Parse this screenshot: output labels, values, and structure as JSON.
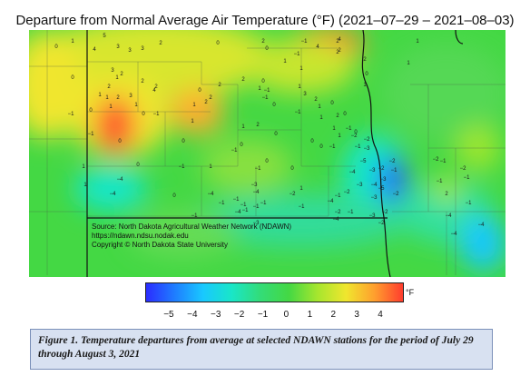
{
  "title": "Departure from Normal Average Air Temperature (°F) (2021–07–29 – 2021–08–03)",
  "source_lines": [
    "Source: North Dakota Agricultural Weather Network (NDAWN)",
    "https://ndawn.ndsu.nodak.edu",
    "Copyright © North Dakota State University"
  ],
  "colorbar": {
    "unit": "°F",
    "ticks": [
      "−5",
      "−4",
      "−3",
      "−2",
      "−1",
      "0",
      "1",
      "2",
      "3",
      "4"
    ],
    "range": [
      -6,
      5
    ],
    "colors": [
      "#2b2bff",
      "#1f7cff",
      "#19c8ff",
      "#19e6c8",
      "#33dc78",
      "#44d844",
      "#a6e62e",
      "#f0e62e",
      "#ff9e2e",
      "#ff3b2e"
    ]
  },
  "caption": "Figure 1. Temperature departures from average at selected NDAWN stations for the period of July 29 through August 3, 2021",
  "stations": [
    {
      "v": "0"
    },
    {
      "v": "1"
    },
    {
      "v": "5"
    },
    {
      "v": "3"
    },
    {
      "v": "4"
    },
    {
      "v": "3"
    },
    {
      "v": "3"
    },
    {
      "v": "2"
    },
    {
      "v": "0"
    },
    {
      "v": "2"
    },
    {
      "v": "0"
    },
    {
      "v": "−1"
    },
    {
      "v": "4"
    },
    {
      "v": "2"
    },
    {
      "v": "2"
    },
    {
      "v": "−1"
    },
    {
      "v": "1"
    },
    {
      "v": "1"
    },
    {
      "v": "3"
    },
    {
      "v": "2"
    },
    {
      "v": "2"
    },
    {
      "v": "2"
    },
    {
      "v": "4"
    },
    {
      "v": "3"
    },
    {
      "v": "1"
    },
    {
      "v": "2"
    },
    {
      "v": "0"
    },
    {
      "v": "1"
    },
    {
      "v": "1"
    },
    {
      "v": "2"
    },
    {
      "v": "−1"
    },
    {
      "v": "0"
    },
    {
      "v": "1"
    },
    {
      "v": "2"
    },
    {
      "v": "1"
    },
    {
      "v": "0"
    },
    {
      "v": "−1"
    },
    {
      "v": "1"
    },
    {
      "v": "0"
    },
    {
      "v": "2"
    },
    {
      "v": "2"
    },
    {
      "v": "1"
    },
    {
      "v": "−1"
    },
    {
      "v": "1"
    },
    {
      "v": "3"
    },
    {
      "v": "2"
    },
    {
      "v": "1"
    },
    {
      "v": "1"
    },
    {
      "v": "2"
    },
    {
      "v": "4"
    },
    {
      "v": "2"
    },
    {
      "v": "2"
    },
    {
      "v": "1"
    },
    {
      "v": "0"
    },
    {
      "v": "1"
    },
    {
      "v": "1"
    },
    {
      "v": "2"
    },
    {
      "v": "0"
    },
    {
      "v": "1"
    },
    {
      "v": "0"
    },
    {
      "v": "−1"
    },
    {
      "v": "2"
    },
    {
      "v": "−1"
    },
    {
      "v": "1"
    },
    {
      "v": "0"
    },
    {
      "v": "0"
    },
    {
      "v": "−1"
    },
    {
      "v": "0"
    },
    {
      "v": "1"
    },
    {
      "v": "0"
    },
    {
      "v": "0"
    },
    {
      "v": "0"
    },
    {
      "v": "−1"
    },
    {
      "v": "0"
    },
    {
      "v": "0"
    },
    {
      "v": "−1"
    },
    {
      "v": "1"
    },
    {
      "v": "−2"
    },
    {
      "v": "−1"
    },
    {
      "v": "0"
    },
    {
      "v": "−1"
    },
    {
      "v": "0"
    },
    {
      "v": "−1"
    },
    {
      "v": "0"
    },
    {
      "v": "1"
    },
    {
      "v": "0"
    },
    {
      "v": "−1"
    },
    {
      "v": "−3"
    },
    {
      "v": "−4"
    },
    {
      "v": "−2"
    },
    {
      "v": "−1"
    },
    {
      "v": "1"
    },
    {
      "v": "−2"
    },
    {
      "v": "−2"
    },
    {
      "v": "−3"
    },
    {
      "v": "−4"
    },
    {
      "v": "−3"
    },
    {
      "v": "−5"
    },
    {
      "v": "−3"
    },
    {
      "v": "−4"
    },
    {
      "v": "−3"
    },
    {
      "v": "−3"
    },
    {
      "v": "−2"
    },
    {
      "v": "−5"
    },
    {
      "v": "−2"
    },
    {
      "v": "−3"
    },
    {
      "v": "−2"
    },
    {
      "v": "−1"
    },
    {
      "v": "−2"
    },
    {
      "v": "−2"
    },
    {
      "v": "−4"
    },
    {
      "v": "−4"
    },
    {
      "v": "−1"
    },
    {
      "v": "−1"
    },
    {
      "v": "−2"
    },
    {
      "v": "−4"
    },
    {
      "v": "−4"
    },
    {
      "v": "−1"
    },
    {
      "v": "−1"
    },
    {
      "v": "−1"
    },
    {
      "v": "−1"
    },
    {
      "v": "−3"
    },
    {
      "v": "−4"
    },
    {
      "v": "−1"
    },
    {
      "v": "−4"
    },
    {
      "v": "−1"
    },
    {
      "v": "−1"
    },
    {
      "v": "0"
    },
    {
      "v": "1"
    },
    {
      "v": "1"
    },
    {
      "v": "−2"
    },
    {
      "v": "−1"
    },
    {
      "v": "−2"
    },
    {
      "v": "−1"
    },
    {
      "v": "2"
    },
    {
      "v": "−1"
    },
    {
      "v": "−4"
    },
    {
      "v": "−4"
    },
    {
      "v": "−4"
    },
    {
      "v": "−1"
    }
  ]
}
